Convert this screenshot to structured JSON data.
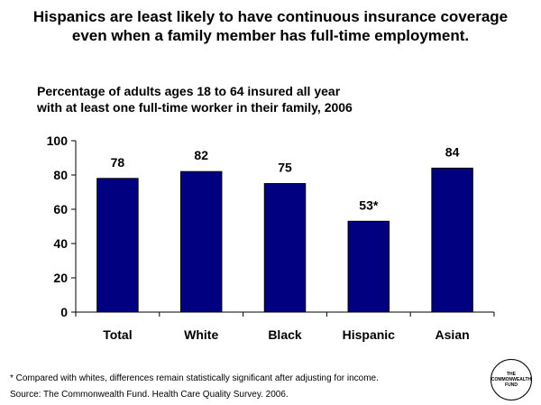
{
  "title_lines": [
    "Hispanics are least likely to have continuous insurance coverage",
    "even when a family member has full-time employment."
  ],
  "chart_data": {
    "type": "bar",
    "subtitle_lines": [
      "Percentage of adults ages 18 to 64 insured all year",
      "with at least one full-time worker in their family, 2006"
    ],
    "categories": [
      "Total",
      "White",
      "Black",
      "Hispanic",
      "Asian"
    ],
    "values": [
      78,
      82,
      75,
      53,
      84
    ],
    "data_labels": [
      "78",
      "82",
      "75",
      "53*",
      "84"
    ],
    "ylim": [
      0,
      100
    ],
    "yticks": [
      0,
      20,
      40,
      60,
      80,
      100
    ],
    "bar_color": "#000080",
    "grid": false,
    "legend": "none"
  },
  "footnote": "* Compared with whites, differences remain statistically significant after adjusting for income.",
  "source": "Source: The Commonwealth Fund. Health Care Quality Survey. 2006.",
  "logo": {
    "lines": [
      "THE",
      "COMMONWEALTH",
      "FUND"
    ]
  }
}
